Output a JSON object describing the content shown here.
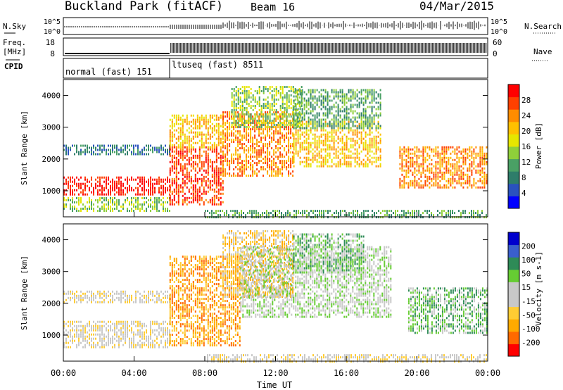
{
  "header": {
    "title": "Buckland Park (fitACF)",
    "beam": "Beam 16",
    "date": "04/Mar/2015"
  },
  "meta_panels": {
    "left_labels": {
      "nsky": "N.Sky",
      "freq_line1": "Freq.",
      "freq_line2": "[MHz]",
      "cpid": "CPID"
    },
    "right_labels": {
      "nsearch": "N.Search",
      "nave": "Nave"
    },
    "noise_ticks_left": [
      "10^5",
      "10^0"
    ],
    "noise_ticks_right": [
      "10^5",
      "10^0"
    ],
    "freq_ticks": [
      "18",
      "8"
    ],
    "nave_ticks": [
      "60",
      "0"
    ],
    "cpid_segments": [
      "normal (fast) 151",
      "ltuseq (fast) 8511"
    ],
    "mode_change_hour": 6.0
  },
  "time_axis": {
    "label": "Time UT",
    "ticks": [
      "00:00",
      "04:00",
      "08:00",
      "12:00",
      "16:00",
      "20:00",
      "00:00"
    ]
  },
  "chart_data": [
    {
      "type": "heatmap",
      "id": "power",
      "ylabel": "Slant Range [km]",
      "xlim": [
        0,
        24
      ],
      "ylim": [
        180,
        4500
      ],
      "yticks": [
        1000,
        2000,
        3000,
        4000
      ],
      "colorbar": {
        "label": "Power [dB]",
        "ticks": [
          "28",
          "24",
          "20",
          "16",
          "12",
          "8",
          "4"
        ],
        "colors": [
          "#0000ff",
          "#2a52be",
          "#2e7d6a",
          "#4aa065",
          "#8fcf3a",
          "#e6e600",
          "#ffc000",
          "#ff8c00",
          "#ff4000",
          "#ff0000"
        ]
      },
      "regions": [
        {
          "t0": 0.0,
          "t1": 6.0,
          "r0": 900,
          "r1": 1450,
          "level": 9
        },
        {
          "t0": 0.0,
          "t1": 6.0,
          "r0": 2150,
          "r1": 2450,
          "level": 2
        },
        {
          "t0": 0.0,
          "t1": 6.0,
          "r0": 350,
          "r1": 800,
          "level": 4
        },
        {
          "t0": 6.0,
          "t1": 9.0,
          "r0": 600,
          "r1": 2400,
          "level": 8
        },
        {
          "t0": 6.0,
          "t1": 9.0,
          "r0": 2400,
          "r1": 3400,
          "level": 6
        },
        {
          "t0": 9.0,
          "t1": 13.0,
          "r0": 1500,
          "r1": 3500,
          "level": 7
        },
        {
          "t0": 9.5,
          "t1": 13.5,
          "r0": 3000,
          "r1": 4300,
          "level": 4
        },
        {
          "t0": 13.0,
          "t1": 18.0,
          "r0": 1800,
          "r1": 3200,
          "level": 6
        },
        {
          "t0": 13.0,
          "t1": 18.0,
          "r0": 3000,
          "r1": 4200,
          "level": 3
        },
        {
          "t0": 19.0,
          "t1": 24.0,
          "r0": 1100,
          "r1": 2400,
          "level": 7
        },
        {
          "t0": 8.0,
          "t1": 24.0,
          "r0": 200,
          "r1": 400,
          "level": 3
        }
      ]
    },
    {
      "type": "heatmap",
      "id": "velocity",
      "ylabel": "Slant Range [km]",
      "xlim": [
        0,
        24
      ],
      "ylim": [
        180,
        4500
      ],
      "yticks": [
        1000,
        2000,
        3000,
        4000
      ],
      "colorbar": {
        "label": "Velocity [m s-1]",
        "ticks": [
          "200",
          "100",
          "50",
          "15",
          "-15",
          "-50",
          "-100",
          "-200"
        ],
        "colors": [
          "#ff0000",
          "#ff6a00",
          "#ffaa00",
          "#ffcc33",
          "#c8c8c8",
          "#c8c8c8",
          "#66cc33",
          "#2e8b57",
          "#3a5fcd",
          "#0000cd"
        ]
      },
      "regions": [
        {
          "t0": 0.0,
          "t1": 6.0,
          "r0": 600,
          "r1": 1450,
          "level": 4
        },
        {
          "t0": 0.0,
          "t1": 6.0,
          "r0": 2050,
          "r1": 2400,
          "level": 4
        },
        {
          "t0": 6.0,
          "t1": 10.0,
          "r0": 700,
          "r1": 3500,
          "level": 2
        },
        {
          "t0": 9.0,
          "t1": 13.0,
          "r0": 2200,
          "r1": 4300,
          "level": 3
        },
        {
          "t0": 10.0,
          "t1": 18.5,
          "r0": 1600,
          "r1": 3800,
          "level": 5
        },
        {
          "t0": 13.0,
          "t1": 17.0,
          "r0": 3000,
          "r1": 4200,
          "level": 6
        },
        {
          "t0": 19.5,
          "t1": 24.0,
          "r0": 1100,
          "r1": 2500,
          "level": 6
        },
        {
          "t0": 8.0,
          "t1": 24.0,
          "r0": 200,
          "r1": 400,
          "level": 4
        }
      ]
    }
  ]
}
